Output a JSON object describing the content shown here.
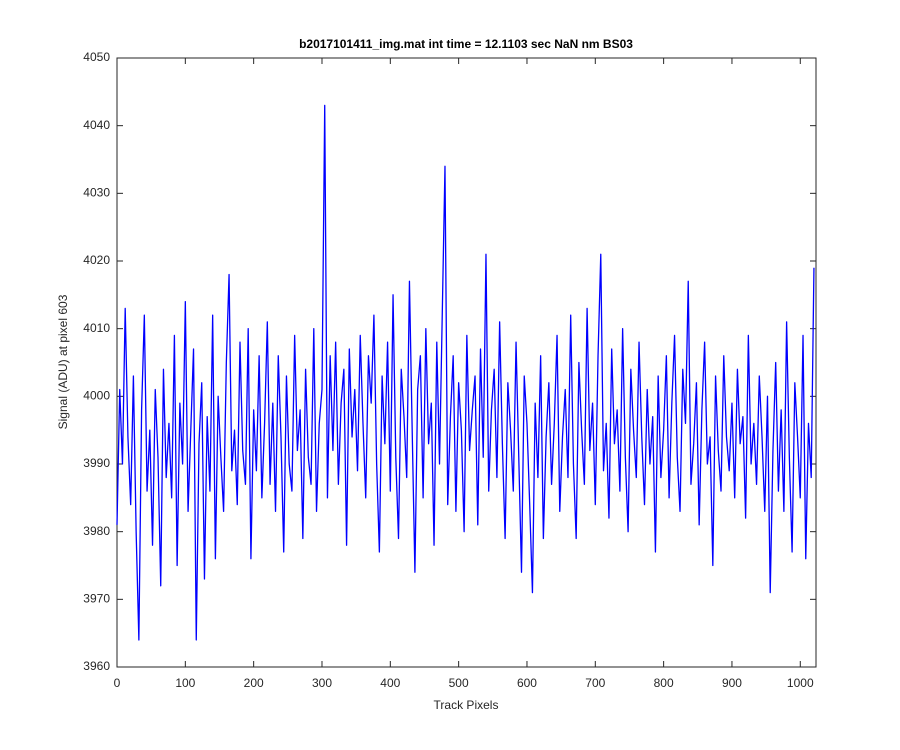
{
  "chart_data": {
    "type": "line",
    "title": "b2017101411_img.mat int time = 12.1103 sec  NaN nm BS03",
    "x_label": "Track Pixels",
    "y_label": "Signal (ADU) at pixel 603",
    "xlim": [
      0,
      1023
    ],
    "ylim": [
      3960,
      4050
    ],
    "xticks": [
      0,
      100,
      200,
      300,
      400,
      500,
      600,
      700,
      800,
      900,
      1000
    ],
    "yticks": [
      3960,
      3970,
      3980,
      3990,
      4000,
      4010,
      4020,
      4030,
      4040,
      4050
    ],
    "x": [
      0,
      4,
      8,
      12,
      16,
      20,
      24,
      28,
      32,
      36,
      40,
      44,
      48,
      52,
      56,
      60,
      64,
      68,
      72,
      76,
      80,
      84,
      88,
      92,
      96,
      100,
      104,
      108,
      112,
      116,
      120,
      124,
      128,
      132,
      136,
      140,
      144,
      148,
      152,
      156,
      160,
      164,
      168,
      172,
      176,
      180,
      184,
      188,
      192,
      196,
      200,
      204,
      208,
      212,
      216,
      220,
      224,
      228,
      232,
      236,
      240,
      244,
      248,
      252,
      256,
      260,
      264,
      268,
      272,
      276,
      280,
      284,
      288,
      292,
      296,
      300,
      304,
      308,
      312,
      316,
      320,
      324,
      328,
      332,
      336,
      340,
      344,
      348,
      352,
      356,
      360,
      364,
      368,
      372,
      376,
      380,
      384,
      388,
      392,
      396,
      400,
      404,
      408,
      412,
      416,
      420,
      424,
      428,
      432,
      436,
      440,
      444,
      448,
      452,
      456,
      460,
      464,
      468,
      472,
      476,
      480,
      484,
      488,
      492,
      496,
      500,
      504,
      508,
      512,
      516,
      520,
      524,
      528,
      532,
      536,
      540,
      544,
      548,
      552,
      556,
      560,
      564,
      568,
      572,
      576,
      580,
      584,
      588,
      592,
      596,
      600,
      604,
      608,
      612,
      616,
      620,
      624,
      628,
      632,
      636,
      640,
      644,
      648,
      652,
      656,
      660,
      664,
      668,
      672,
      676,
      680,
      684,
      688,
      692,
      696,
      700,
      704,
      708,
      712,
      716,
      720,
      724,
      728,
      732,
      736,
      740,
      744,
      748,
      752,
      756,
      760,
      764,
      768,
      772,
      776,
      780,
      784,
      788,
      792,
      796,
      800,
      804,
      808,
      812,
      816,
      820,
      824,
      828,
      832,
      836,
      840,
      844,
      848,
      852,
      856,
      860,
      864,
      868,
      872,
      876,
      880,
      884,
      888,
      892,
      896,
      900,
      904,
      908,
      912,
      916,
      920,
      924,
      928,
      932,
      936,
      940,
      944,
      948,
      952,
      956,
      960,
      964,
      968,
      972,
      976,
      980,
      984,
      988,
      992,
      996,
      1000,
      1004,
      1008,
      1012,
      1016,
      1020
    ],
    "series": [
      {
        "color": "#0000ff",
        "values": [
          3981,
          4001,
          3990,
          4013,
          3994,
          3984,
          4003,
          3980,
          3964,
          3998,
          4012,
          3986,
          3995,
          3978,
          4001,
          3991,
          3972,
          4004,
          3988,
          3996,
          3985,
          4009,
          3975,
          3999,
          3990,
          4014,
          3983,
          3995,
          4007,
          3964,
          3993,
          4002,
          3973,
          3997,
          3986,
          4012,
          3976,
          4000,
          3991,
          3983,
          4005,
          4018,
          3989,
          3995,
          3984,
          4008,
          3992,
          3987,
          4010,
          3976,
          3998,
          3989,
          4006,
          3985,
          3996,
          4011,
          3987,
          3999,
          3983,
          4006,
          3994,
          3977,
          4003,
          3990,
          3986,
          4009,
          3992,
          3998,
          3979,
          4004,
          3991,
          3987,
          4010,
          3983,
          3996,
          4001,
          4043,
          3985,
          4006,
          3992,
          4008,
          3987,
          3999,
          4004,
          3978,
          4007,
          3994,
          4001,
          3989,
          4009,
          3996,
          3985,
          4006,
          3999,
          4012,
          3990,
          3977,
          4003,
          3993,
          4008,
          3986,
          4015,
          3991,
          3979,
          4004,
          3997,
          3988,
          4017,
          3995,
          3974,
          4001,
          4006,
          3985,
          4010,
          3993,
          3999,
          3978,
          4008,
          3990,
          4012,
          4034,
          3984,
          3997,
          4006,
          3983,
          4002,
          3995,
          3980,
          4009,
          3992,
          3998,
          4003,
          3981,
          4007,
          3991,
          4021,
          3986,
          3998,
          4004,
          3988,
          4011,
          3993,
          3979,
          4002,
          3995,
          3986,
          4008,
          3991,
          3974,
          4003,
          3996,
          3984,
          3971,
          3999,
          3988,
          4006,
          3979,
          3994,
          4002,
          3987,
          3996,
          4009,
          3983,
          3994,
          4001,
          3988,
          4012,
          3990,
          3979,
          4005,
          3995,
          3987,
          4013,
          3992,
          3999,
          3984,
          4006,
          4021,
          3989,
          3996,
          3982,
          4007,
          3993,
          3998,
          3986,
          4010,
          3991,
          3980,
          4004,
          3995,
          3988,
          4008,
          3994,
          3984,
          4001,
          3990,
          3997,
          3977,
          4003,
          3988,
          3995,
          4006,
          3985,
          3999,
          4009,
          3991,
          3983,
          4004,
          3996,
          4017,
          3987,
          3993,
          4002,
          3981,
          3998,
          4008,
          3990,
          3994,
          3975,
          4003,
          3992,
          3986,
          4006,
          3994,
          3989,
          3999,
          3985,
          4004,
          3993,
          3997,
          3982,
          4009,
          3990,
          3996,
          3987,
          4003,
          3994,
          3983,
          4000,
          3971,
          3992,
          4005,
          3986,
          3998,
          3983,
          4011,
          3991,
          3977,
          4002,
          3994,
          3985,
          4009,
          3976,
          3996,
          3988,
          4019
        ]
      }
    ]
  }
}
